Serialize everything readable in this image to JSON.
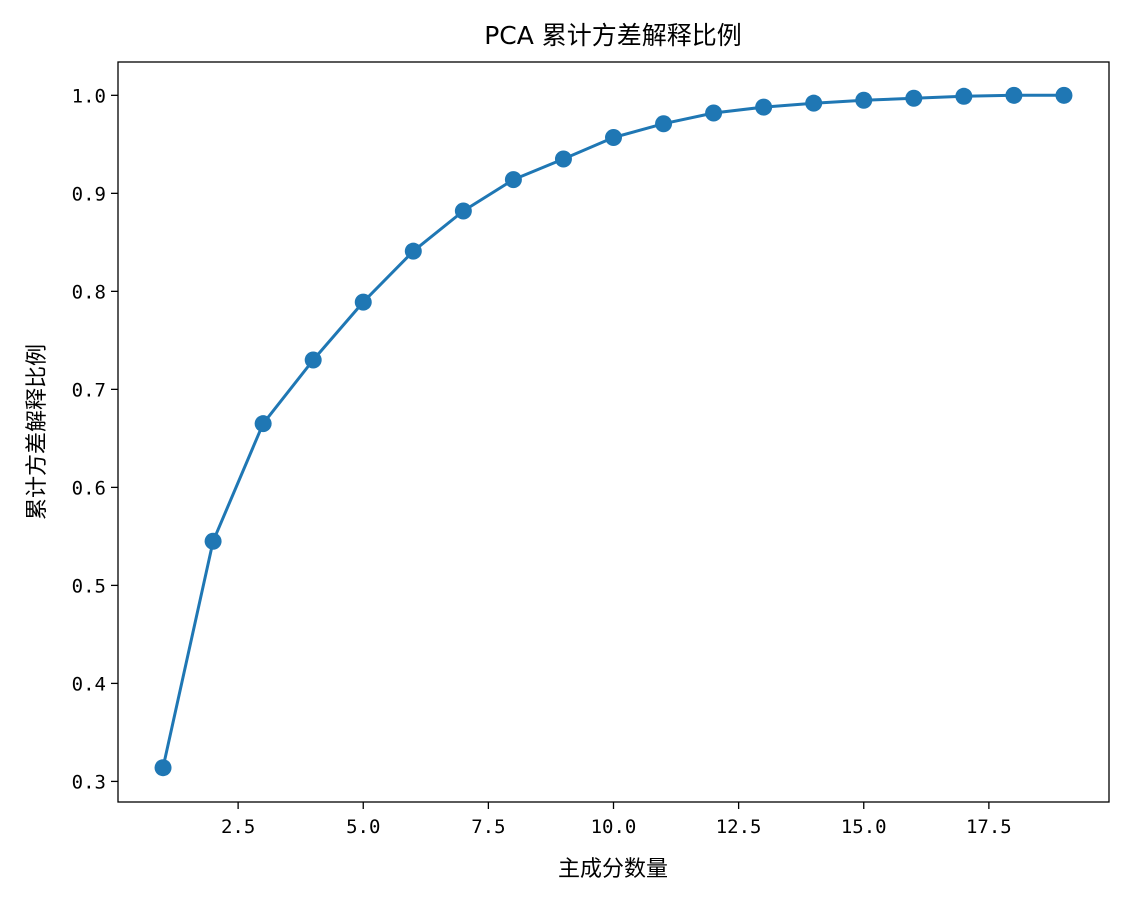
{
  "chart_data": {
    "type": "line",
    "title": "PCA 累计方差解释比例",
    "xlabel": "主成分数量",
    "ylabel": "累计方差解释比例",
    "xlim": [
      0.1,
      19.9
    ],
    "ylim": [
      0.279,
      1.034
    ],
    "xticks": [
      2.5,
      5.0,
      7.5,
      10.0,
      12.5,
      15.0,
      17.5
    ],
    "xtick_labels": [
      "2.5",
      "5.0",
      "7.5",
      "10.0",
      "12.5",
      "15.0",
      "17.5"
    ],
    "yticks": [
      0.3,
      0.4,
      0.5,
      0.6,
      0.7,
      0.8,
      0.9,
      1.0
    ],
    "ytick_labels": [
      "0.3",
      "0.4",
      "0.5",
      "0.6",
      "0.7",
      "0.8",
      "0.9",
      "1.0"
    ],
    "grid": false,
    "color": "#1f77b4",
    "marker": "circle",
    "series": [
      {
        "x": [
          1,
          2,
          3,
          4,
          5,
          6,
          7,
          8,
          9,
          10,
          11,
          12,
          13,
          14,
          15,
          16,
          17,
          18,
          19
        ],
        "values": [
          0.314,
          0.545,
          0.665,
          0.73,
          0.789,
          0.841,
          0.882,
          0.914,
          0.935,
          0.957,
          0.971,
          0.982,
          0.988,
          0.992,
          0.995,
          0.997,
          0.999,
          1.0,
          1.0
        ]
      }
    ]
  }
}
